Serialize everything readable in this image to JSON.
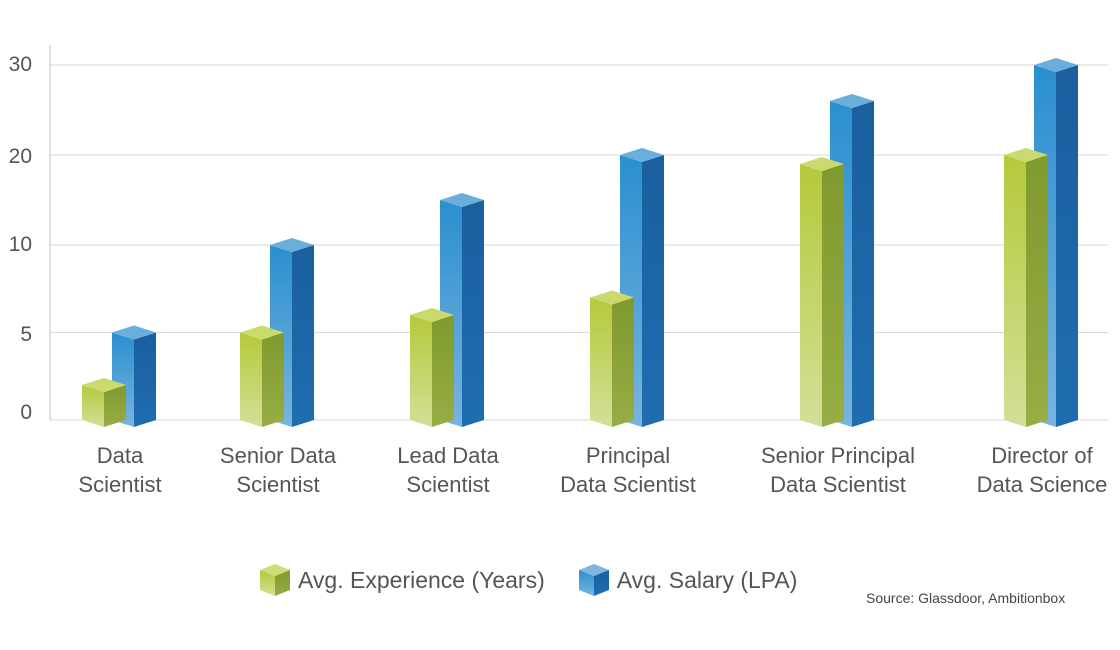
{
  "chart_data": {
    "type": "bar",
    "title": "",
    "xlabel": "",
    "ylabel": "",
    "ylim": [
      0,
      30
    ],
    "yticks": [
      0,
      5,
      10,
      20,
      30
    ],
    "categories": [
      "Data Scientist",
      "Senior Data Scientist",
      "Lead Data Scientist",
      "Principal Data Scientist",
      "Senior Principal Data Scientist",
      "Director of Data Science"
    ],
    "category_lines": [
      [
        "Data",
        "Scientist"
      ],
      [
        "Senior Data",
        "Scientist"
      ],
      [
        "Lead Data",
        "Scientist"
      ],
      [
        "Principal",
        "Data Scientist"
      ],
      [
        "Senior Principal",
        "Data Scientist"
      ],
      [
        "Director of",
        "Data Science"
      ]
    ],
    "series": [
      {
        "name": "Avg. Experience (Years)",
        "values": [
          2,
          5,
          6,
          7,
          19,
          20
        ],
        "color": "#9bbb3b"
      },
      {
        "name": "Avg. Salary (LPA)",
        "values": [
          5,
          10,
          15,
          20,
          26,
          30
        ],
        "color": "#2b82c4"
      }
    ]
  },
  "legend": {
    "experience_label": "Avg. Experience (Years)",
    "salary_label": "Avg. Salary (LPA)"
  },
  "source": "Source: Glassdoor, Ambitionbox"
}
